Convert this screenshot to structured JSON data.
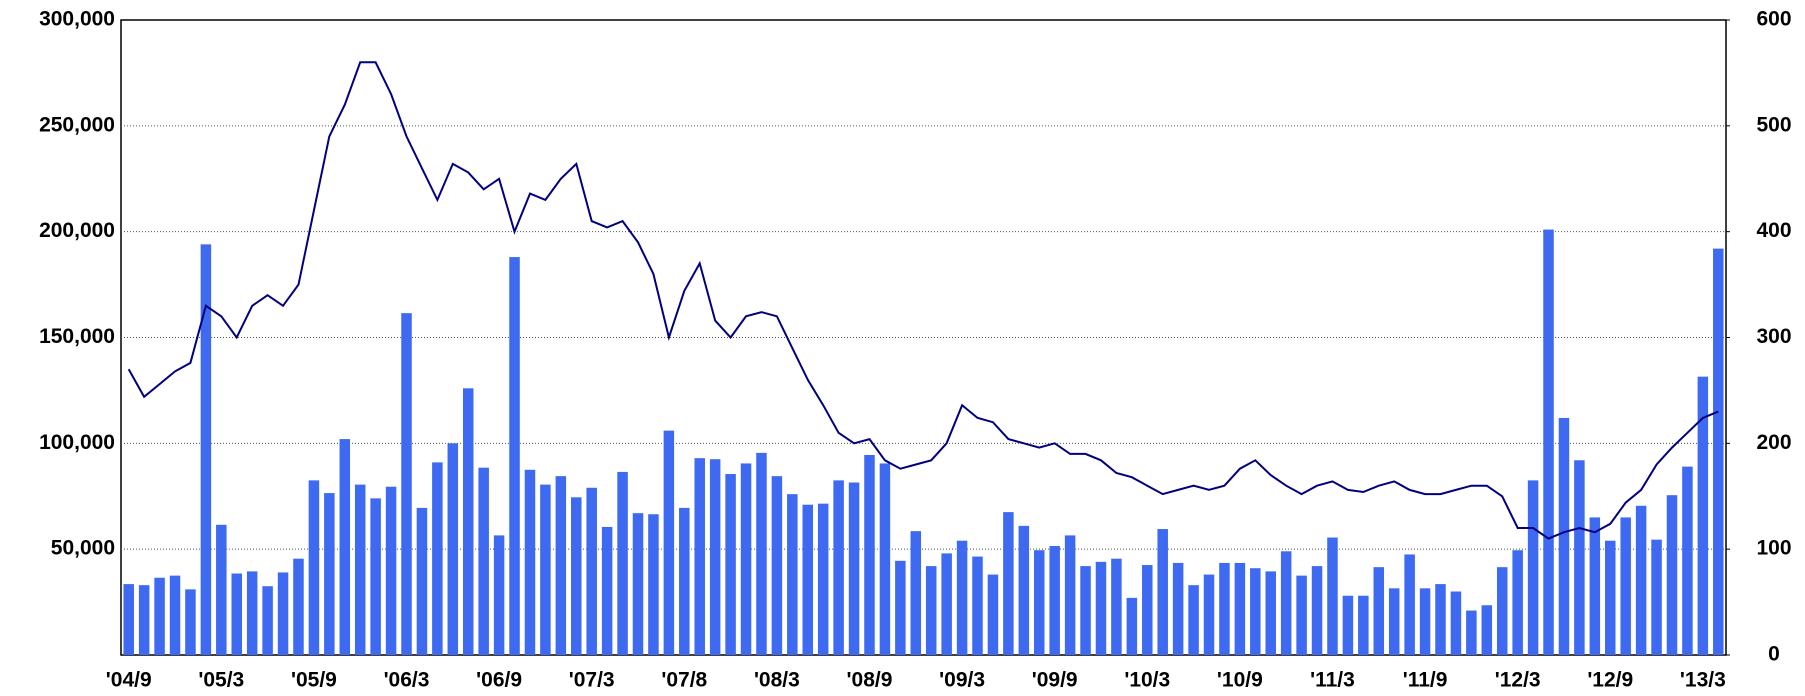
{
  "chart_data": {
    "type": "bar_line",
    "categories": [
      "'04/9",
      null,
      null,
      null,
      null,
      null,
      "'05/3",
      null,
      null,
      null,
      null,
      null,
      "'05/9",
      null,
      null,
      null,
      null,
      null,
      "'06/3",
      null,
      null,
      null,
      null,
      null,
      "'06/9",
      null,
      null,
      null,
      null,
      null,
      "'07/3",
      null,
      null,
      null,
      null,
      null,
      "'07/8",
      null,
      null,
      null,
      null,
      null,
      "'08/3",
      null,
      null,
      null,
      null,
      null,
      "'08/9",
      null,
      null,
      null,
      null,
      null,
      "'09/3",
      null,
      null,
      null,
      null,
      null,
      "'09/9",
      null,
      null,
      null,
      null,
      null,
      "'10/3",
      null,
      null,
      null,
      null,
      null,
      "'10/9",
      null,
      null,
      null,
      null,
      null,
      "'11/3",
      null,
      null,
      null,
      null,
      null,
      "'11/9",
      null,
      null,
      null,
      null,
      null,
      "'12/3",
      null,
      null,
      null,
      null,
      null,
      "'12/9",
      null,
      null,
      null,
      null,
      null,
      "'13/3",
      null
    ],
    "series": [
      {
        "color": "#3d6af0",
        "axis": "y2",
        "kind": "bar",
        "values": [
          67,
          66,
          73,
          75,
          62,
          388,
          123,
          77,
          79,
          65,
          78,
          91,
          165,
          153,
          204,
          161,
          148,
          159,
          323,
          139,
          182,
          200,
          252,
          177,
          113,
          376,
          175,
          161,
          169,
          149,
          158,
          121,
          173,
          134,
          133,
          212,
          139,
          186,
          185,
          171,
          181,
          191,
          169,
          152,
          142,
          143,
          165,
          163,
          189,
          181,
          89,
          117,
          84,
          96,
          108,
          93,
          76,
          135,
          122,
          99,
          103,
          113,
          84,
          88,
          91,
          54,
          85,
          119,
          87,
          66,
          76,
          87,
          87,
          82,
          79,
          98,
          75,
          84,
          111,
          56,
          56,
          83,
          63,
          95,
          63,
          67,
          60,
          42,
          47,
          83,
          99,
          165,
          402,
          224,
          184,
          130,
          108,
          130,
          141,
          109,
          151,
          178,
          263,
          384
        ]
      },
      {
        "color": "#000080",
        "axis": "y",
        "kind": "line",
        "values": [
          135,
          122,
          128,
          134,
          138,
          165,
          160,
          150,
          165,
          170,
          165,
          175,
          210,
          245,
          260,
          280,
          280,
          265,
          245,
          230,
          215,
          232,
          228,
          220,
          225,
          200,
          218,
          215,
          225,
          232,
          205,
          202,
          205,
          195,
          180,
          150,
          172,
          185,
          158,
          150,
          160,
          162,
          160,
          145,
          130,
          118,
          105,
          100,
          102,
          92,
          88,
          90,
          92,
          100,
          118,
          112,
          110,
          102,
          100,
          98,
          100,
          95,
          95,
          92,
          86,
          84,
          80,
          76,
          78,
          80,
          78,
          80,
          88,
          92,
          85,
          80,
          76,
          80,
          82,
          78,
          77,
          80,
          82,
          78,
          76,
          76,
          78,
          80,
          80,
          75,
          60,
          60,
          55,
          58,
          60,
          58,
          62,
          72,
          78,
          90,
          98,
          105,
          112,
          115
        ]
      }
    ],
    "ylim": [
      0,
      300000
    ],
    "yticks": [
      {
        "value": 50000,
        "label": "50,000"
      },
      {
        "value": 100000,
        "label": "100,000"
      },
      {
        "value": 150000,
        "label": "150,000"
      },
      {
        "value": 200000,
        "label": "200,000"
      },
      {
        "value": 250000,
        "label": "250,000"
      },
      {
        "value": 300000,
        "label": "300,000"
      }
    ],
    "y2lim": [
      0,
      600
    ],
    "y2ticks": [
      0,
      100,
      200,
      300,
      400,
      500,
      600
    ],
    "line_value_unit": 1000,
    "grid": true
  }
}
